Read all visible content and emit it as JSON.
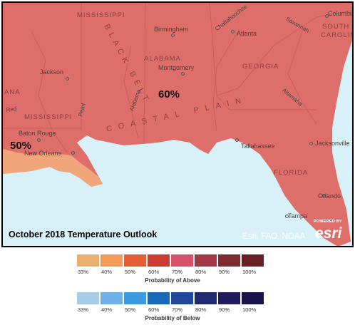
{
  "map": {
    "title": "October 2018 Temperature Outlook",
    "attribution": "Esri, FAO, NOAA",
    "esri_badge": {
      "powered": "POWERED BY",
      "wordmark": "esri"
    },
    "colors": {
      "land_60": "#de6e6a",
      "land_50": "#f0a57a",
      "water": "#d8f0f7",
      "deep_water": "#bde6f5"
    },
    "probability_labels": [
      {
        "text": "60%",
        "category": "probability-above",
        "level": 0.6
      },
      {
        "text": "50%",
        "category": "probability-above",
        "level": 0.5
      }
    ],
    "cities": [
      "Columbia",
      "Birmingham",
      "Atlanta",
      "Montgomery",
      "Jackson",
      "Baton Rouge",
      "New Orleans",
      "Tallahassee",
      "Jacksonville",
      "Orlando",
      "Tampa"
    ],
    "states": [
      "MISSISSIPPI",
      "SOUTH",
      "CAROLINA",
      "ALABAMA",
      "GEORGIA",
      "MISSISSIPPI",
      "FLORIDA",
      "ANA"
    ],
    "regions": [
      "BLACK BELT",
      "COASTAL PLAIN"
    ],
    "rivers": [
      "Chattahoochee",
      "Savannah",
      "Alabama",
      "Altamaha",
      "Pearl",
      "Red"
    ]
  },
  "legend_above": {
    "caption": "Probability of Above",
    "ticks": [
      "33%",
      "40%",
      "50%",
      "60%",
      "70%",
      "80%",
      "90%",
      "100%"
    ],
    "colors": [
      "#e8b06c",
      "#f59a56",
      "#e55f35",
      "#cf3a32",
      "#d9506a",
      "#a33845",
      "#7e2a30",
      "#6b1f24"
    ]
  },
  "legend_below": {
    "caption": "Probability of Below",
    "ticks": [
      "33%",
      "40%",
      "50%",
      "60%",
      "70%",
      "80%",
      "90%",
      "100%"
    ],
    "colors": [
      "#a8cbe8",
      "#6fb1e6",
      "#3a9be0",
      "#1769b8",
      "#20479a",
      "#1f2b6e",
      "#221a5c",
      "#1b144a"
    ]
  }
}
